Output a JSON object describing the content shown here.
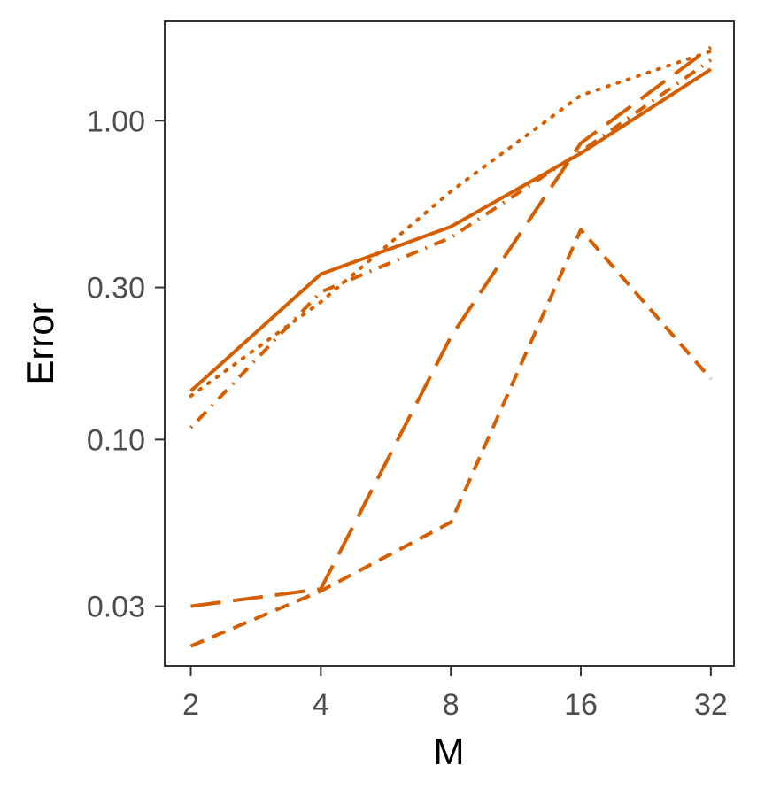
{
  "chart_data": {
    "type": "line",
    "title": "",
    "xlabel": "M",
    "ylabel": "Error",
    "x_scale": "log2",
    "y_scale": "log10",
    "x": [
      2,
      4,
      8,
      16,
      32
    ],
    "x_tick_labels": [
      "2",
      "4",
      "8",
      "16",
      "32"
    ],
    "y_ticks": [
      0.03,
      0.1,
      0.3,
      1.0
    ],
    "y_tick_labels": [
      "0.03",
      "0.10",
      "0.30",
      "1.00"
    ],
    "xlim": [
      1.74,
      36.2
    ],
    "ylim": [
      0.0195,
      2.05
    ],
    "grid": false,
    "legend": "none",
    "line_color": "#d55e00",
    "series": [
      {
        "style": "solid",
        "values": [
          0.142,
          0.33,
          0.465,
          0.79,
          1.45
        ]
      },
      {
        "style": "dotted",
        "values": [
          0.137,
          0.27,
          0.6,
          1.2,
          1.65
        ]
      },
      {
        "style": "dotdash",
        "values": [
          0.109,
          0.29,
          0.43,
          0.8,
          1.55
        ]
      },
      {
        "style": "longdash",
        "values": [
          0.03,
          0.034,
          0.21,
          0.85,
          1.7
        ]
      },
      {
        "style": "dashed",
        "values": [
          0.0225,
          0.0335,
          0.055,
          0.455,
          0.155
        ]
      }
    ]
  }
}
